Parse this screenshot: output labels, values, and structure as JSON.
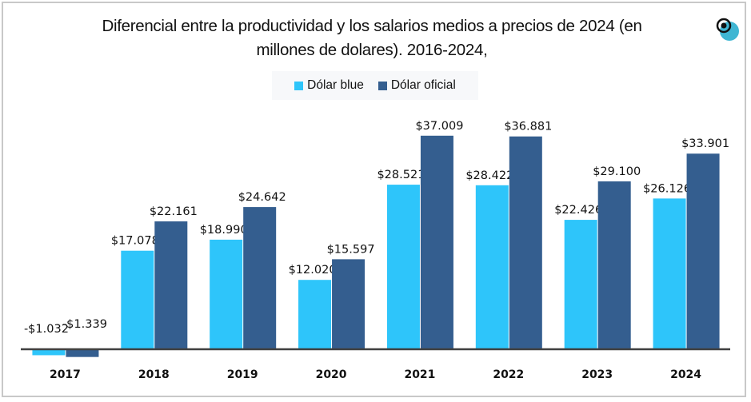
{
  "chart_data": {
    "type": "bar",
    "title": "Diferencial entre la productividad y los salarios medios a precios de 2024 (en millones de dolares). 2016-2024,",
    "title_lines": [
      "Diferencial entre la productividad y los salarios medios a precios de 2024 (en",
      "millones de dolares). 2016-2024,"
    ],
    "xlabel": "",
    "ylabel": "",
    "categories": [
      "2017",
      "2018",
      "2019",
      "2020",
      "2021",
      "2022",
      "2023",
      "2024"
    ],
    "series": [
      {
        "name": "Dólar blue",
        "color": "#2ec5fa",
        "values": [
          -1.032,
          17.078,
          18.99,
          12.02,
          28.521,
          28.422,
          22.426,
          26.126
        ],
        "labels": [
          "-$1.032",
          "$17.078",
          "$18.990",
          "$12.020",
          "$28.521",
          "$28.422",
          "$22.426",
          "$26.126"
        ]
      },
      {
        "name": "Dólar oficial",
        "color": "#345e8f",
        "values": [
          -1.339,
          22.161,
          24.642,
          15.597,
          37.009,
          36.881,
          29.1,
          33.901
        ],
        "labels": [
          "-$1.339",
          "$22.161",
          "$24.642",
          "$15.597",
          "$37.009",
          "$36.881",
          "$29.100",
          "$33.901"
        ]
      }
    ],
    "ylim": [
      -1.5,
      40
    ],
    "grid": false,
    "legend_position": "top-center",
    "axis_color": "#404040"
  },
  "logo": {
    "icon": "brand-logo-icon",
    "accent": "#3fb6d3"
  }
}
